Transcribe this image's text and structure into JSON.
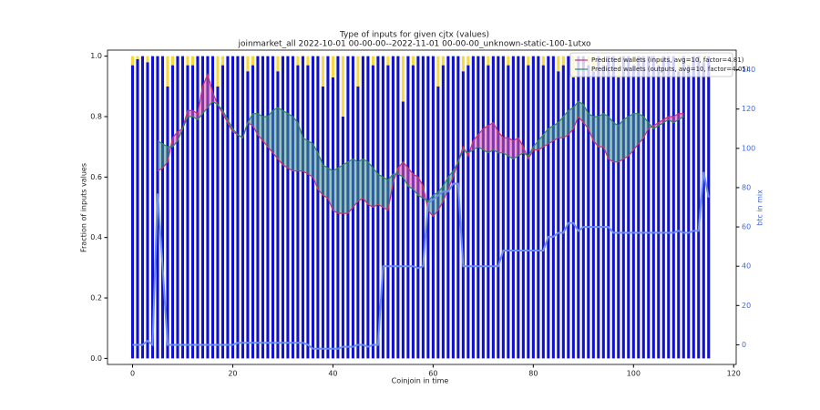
{
  "chart_data": {
    "type": "bar",
    "title": "Type of inputs for given cjtx (values)",
    "subtitle": "joinmarket_all 2022-10-01 00-00-00--2022-11-01 00-00-00_unknown-static-100-1utxo",
    "x_label": "Coinjoin in time",
    "y_label": "Fraction of inputs values",
    "y2_label": "btc in mix",
    "y2_color": "#4169e1",
    "xlim": [
      -5,
      120.5
    ],
    "xticks": [
      0,
      20,
      40,
      60,
      80,
      100,
      120
    ],
    "ylim": [
      -0.02,
      1.02
    ],
    "yticks": [
      {
        "value": 0,
        "label": "0.0"
      },
      0.2,
      0.4,
      0.6,
      0.8,
      {
        "value": 1,
        "label": "1.0"
      }
    ],
    "y2lim": [
      -10,
      150
    ],
    "y2ticks": [
      0,
      20,
      40,
      60,
      80,
      100,
      120,
      140
    ],
    "legend": "upper right",
    "fill_colors": [
      "#e0559a",
      "#4a9e7e"
    ],
    "x": [
      0,
      1,
      2,
      3,
      4,
      5,
      6,
      7,
      8,
      9,
      10,
      11,
      12,
      13,
      14,
      15,
      16,
      17,
      18,
      19,
      20,
      21,
      22,
      23,
      24,
      25,
      26,
      27,
      28,
      29,
      30,
      31,
      32,
      33,
      34,
      35,
      36,
      37,
      38,
      39,
      40,
      41,
      42,
      43,
      44,
      45,
      46,
      47,
      48,
      49,
      50,
      51,
      52,
      53,
      54,
      55,
      56,
      57,
      58,
      59,
      60,
      61,
      62,
      63,
      64,
      65,
      66,
      67,
      68,
      69,
      70,
      71,
      72,
      73,
      74,
      75,
      76,
      77,
      78,
      79,
      80,
      81,
      82,
      83,
      84,
      85,
      86,
      87,
      88,
      89,
      90,
      91,
      92,
      93,
      94,
      95,
      96,
      97,
      98,
      99,
      100,
      101,
      102,
      103,
      104,
      105,
      106,
      107,
      108,
      109,
      110,
      111,
      112,
      113,
      114,
      115
    ],
    "series": [
      {
        "type": "bar",
        "color": "#1010d0",
        "values": [
          0.97,
          0.99,
          1,
          0.98,
          1,
          1,
          1,
          0.9,
          0.97,
          1,
          1,
          0.97,
          0.97,
          1,
          1,
          1,
          1,
          0.9,
          0.97,
          1,
          1,
          1,
          1,
          0.95,
          0.97,
          1,
          1,
          1,
          1,
          0.95,
          1,
          1,
          1,
          0.97,
          1,
          0.97,
          1,
          1,
          0.9,
          1,
          0.93,
          1,
          0.8,
          1,
          1,
          0.9,
          1,
          1,
          0.97,
          1,
          1,
          0.97,
          1,
          1,
          0.85,
          1,
          0.97,
          1,
          1,
          1,
          1,
          0.9,
          0.97,
          1,
          1,
          1,
          0.95,
          0.97,
          1,
          1,
          1,
          0.97,
          1,
          1,
          1,
          0.97,
          1,
          1,
          1,
          0.97,
          1,
          1,
          0.97,
          1,
          1,
          0.95,
          0.97,
          1,
          0.93,
          1,
          1,
          0.97,
          0.95,
          1,
          0.97,
          1,
          1,
          0.93,
          1,
          1,
          0.97,
          1,
          1,
          1,
          1,
          0.97,
          1,
          1,
          1,
          0.95,
          1,
          0.97,
          1,
          1,
          0.98,
          1
        ]
      },
      {
        "type": "bar",
        "color": "#f5d742",
        "values": [
          0.03,
          0.01,
          0,
          0.02,
          0,
          0,
          0,
          0.1,
          0.03,
          0,
          0,
          0.03,
          0.03,
          0,
          0,
          0,
          0,
          0.1,
          0.03,
          0,
          0,
          0,
          0,
          0.05,
          0.03,
          0,
          0,
          0,
          0,
          0.05,
          0,
          0,
          0,
          0.03,
          0,
          0.03,
          0,
          0,
          0.1,
          0,
          0.07,
          0,
          0.2,
          0,
          0,
          0.1,
          0,
          0,
          0.03,
          0,
          0,
          0.03,
          0,
          0,
          0.15,
          0,
          0.03,
          0,
          0,
          0,
          0,
          0.1,
          0.03,
          0,
          0,
          0,
          0.05,
          0.03,
          0,
          0,
          0,
          0.03,
          0,
          0,
          0,
          0.03,
          0,
          0,
          0,
          0.03,
          0,
          0,
          0.03,
          0,
          0,
          0.05,
          0.03,
          0,
          0.07,
          0,
          0,
          0.03,
          0.05,
          0,
          0.03,
          0,
          0,
          0.07,
          0,
          0,
          0.03,
          0,
          0,
          0,
          0,
          0.03,
          0,
          0,
          0,
          0.05,
          0,
          0.03,
          0,
          0,
          0.02,
          0
        ]
      },
      {
        "type": "line",
        "name": "Predicted wallets (inputs, avg=10, factor=4.81)",
        "color": "#d0306a",
        "values": [
          null,
          null,
          null,
          null,
          null,
          0.62,
          0.63,
          0.65,
          0.73,
          0.75,
          0.76,
          0.82,
          0.82,
          0.81,
          0.9,
          0.94,
          0.88,
          0.84,
          0.81,
          0.78,
          0.75,
          0.74,
          0.73,
          0.78,
          0.77,
          0.74,
          0.72,
          0.7,
          0.68,
          0.66,
          0.64,
          0.63,
          0.62,
          0.62,
          0.62,
          0.61,
          0.6,
          0.56,
          0.54,
          0.53,
          0.49,
          0.48,
          0.48,
          0.48,
          0.5,
          0.52,
          0.53,
          0.51,
          0.5,
          0.51,
          0.5,
          0.49,
          0.58,
          0.63,
          0.65,
          0.63,
          0.61,
          0.6,
          0.57,
          0.49,
          0.47,
          0.49,
          0.52,
          0.56,
          0.6,
          0.65,
          0.7,
          0.67,
          0.72,
          0.74,
          0.76,
          0.77,
          0.78,
          0.75,
          0.73,
          0.73,
          0.72,
          0.73,
          0.7,
          0.66,
          0.69,
          0.69,
          0.7,
          0.71,
          0.72,
          0.73,
          0.73,
          0.74,
          0.76,
          0.8,
          0.78,
          0.76,
          0.72,
          0.7,
          0.7,
          0.66,
          0.65,
          0.65,
          0.66,
          0.67,
          0.69,
          0.71,
          0.73,
          0.76,
          0.77,
          0.78,
          0.79,
          0.8,
          0.8,
          0.81,
          0.81,
          null,
          null,
          null,
          null,
          null
        ]
      },
      {
        "type": "line",
        "name": "Predicted wallets (outputs, avg=10, factor=4.05)",
        "color": "#2e8b57",
        "values": [
          null,
          null,
          null,
          null,
          null,
          0.72,
          0.71,
          0.7,
          0.7,
          0.72,
          0.76,
          0.8,
          0.8,
          0.79,
          0.81,
          0.83,
          0.85,
          0.84,
          0.82,
          0.79,
          0.76,
          0.74,
          0.73,
          0.78,
          0.81,
          0.81,
          0.8,
          0.8,
          0.82,
          0.83,
          0.82,
          0.81,
          0.8,
          0.78,
          0.73,
          0.72,
          0.71,
          0.68,
          0.64,
          0.63,
          0.62,
          0.63,
          0.64,
          0.65,
          0.66,
          0.65,
          0.66,
          0.65,
          0.63,
          0.61,
          0.6,
          0.59,
          0.61,
          0.61,
          0.6,
          0.57,
          0.56,
          0.54,
          0.53,
          0.52,
          0.54,
          0.55,
          0.57,
          0.6,
          0.62,
          0.65,
          0.69,
          0.68,
          0.69,
          0.7,
          0.69,
          0.68,
          0.69,
          0.68,
          0.68,
          0.67,
          0.66,
          0.67,
          0.68,
          0.67,
          0.7,
          0.72,
          0.74,
          0.76,
          0.77,
          0.78,
          0.8,
          0.82,
          0.83,
          0.85,
          0.84,
          0.81,
          0.8,
          0.8,
          0.81,
          0.8,
          0.78,
          0.77,
          0.79,
          0.8,
          0.81,
          0.81,
          0.8,
          0.78,
          0.76,
          0.77,
          0.78,
          0.79,
          0.78,
          0.79,
          0.8,
          null,
          null,
          null,
          null,
          null
        ]
      },
      {
        "type": "line",
        "axis": "y2",
        "color": "#6b8ef0",
        "values": [
          0,
          0,
          0,
          2,
          0,
          77,
          40,
          0,
          0,
          0,
          0,
          0,
          0,
          0,
          0,
          0,
          0,
          0,
          0,
          0,
          0,
          1,
          1,
          1,
          1,
          1,
          1,
          1,
          1,
          1,
          1,
          1,
          1,
          1,
          1,
          0,
          -2,
          -2,
          -2,
          -2,
          -2,
          -2,
          -1,
          -1,
          -1,
          0,
          0,
          -1,
          0,
          0,
          40,
          40,
          40,
          40,
          40,
          40,
          40,
          39,
          40,
          72,
          74,
          76,
          78,
          78,
          82,
          82,
          40,
          40,
          40,
          40,
          40,
          40,
          40,
          40,
          48,
          48,
          48,
          48,
          48,
          48,
          48,
          48,
          48,
          55,
          55,
          57,
          57,
          62,
          62,
          58,
          60,
          60,
          60,
          60,
          60,
          60,
          57,
          57,
          57,
          57,
          57,
          57,
          57,
          57,
          57,
          57,
          57,
          57,
          57,
          58,
          57,
          57,
          58,
          58,
          88,
          75
        ]
      }
    ]
  }
}
